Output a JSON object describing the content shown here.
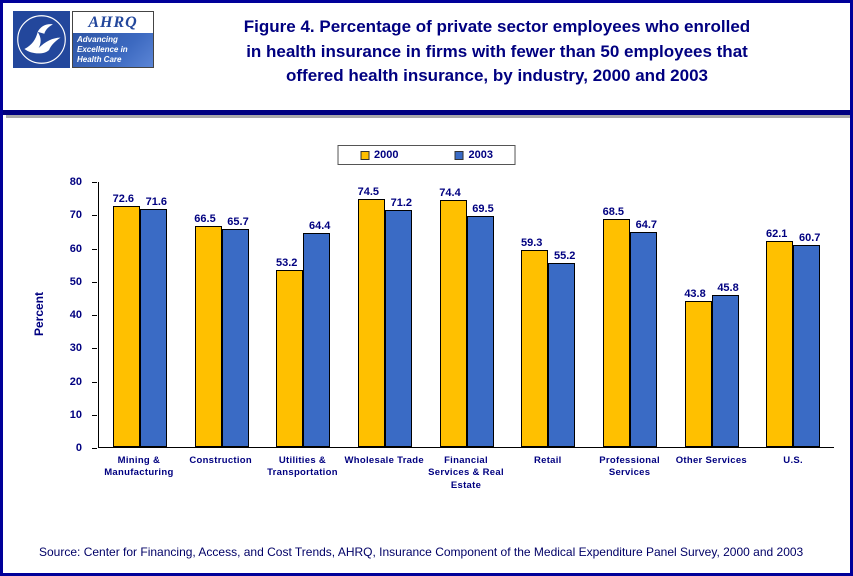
{
  "page": {
    "border_color": "#000099",
    "background": "#ffffff",
    "accent_navy": "#000080"
  },
  "header": {
    "title_line1": "Figure 4.  Percentage of private sector employees who enrolled",
    "title_line2": "in health insurance in firms with fewer than 50 employees that",
    "title_line3": "offered health insurance, by industry, 2000 and 2003",
    "logo": {
      "ahrq": "AHRQ",
      "tagline_lines": [
        "Advancing",
        "Excellence in",
        "Health Care"
      ]
    }
  },
  "chart_data": {
    "type": "bar",
    "title": "Figure 4. Percentage of private sector employees who enrolled in health insurance in firms with fewer than 50 employees that offered health insurance, by industry, 2000 and 2003",
    "categories": [
      "Mining & Manufacturing",
      "Construction",
      "Utilities & Transportation",
      "Wholesale Trade",
      "Financial Services & Real Estate",
      "Retail",
      "Professional Services",
      "Other Services",
      "U.S."
    ],
    "series": [
      {
        "name": "2000",
        "color": "#FFC000",
        "values": [
          72.6,
          66.5,
          53.2,
          74.5,
          74.4,
          59.3,
          68.5,
          43.8,
          62.1
        ]
      },
      {
        "name": "2003",
        "color": "#3A6BC5",
        "values": [
          71.6,
          65.7,
          64.4,
          71.2,
          69.5,
          55.2,
          64.7,
          45.8,
          60.7
        ]
      }
    ],
    "xlabel": "",
    "ylabel": "Percent",
    "ylim": [
      0,
      80
    ],
    "yticks": [
      0,
      10,
      20,
      30,
      40,
      50,
      60,
      70,
      80
    ],
    "grid": false,
    "legend_position": "top-center"
  },
  "footer": {
    "source": "Source: Center for Financing, Access, and Cost Trends, AHRQ, Insurance Component of the Medical Expenditure Panel Survey, 2000 and 2003"
  }
}
